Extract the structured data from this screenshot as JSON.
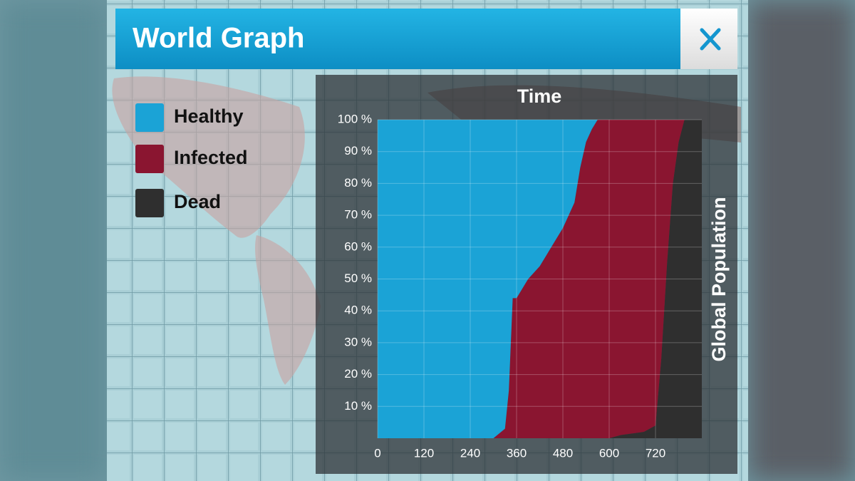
{
  "header": {
    "title": "World Graph"
  },
  "chart_data": {
    "type": "area",
    "stacked": true,
    "title": "Time",
    "ylabel": "Global Population",
    "x": [
      0,
      300,
      330,
      340,
      350,
      360,
      390,
      420,
      450,
      480,
      510,
      525,
      540,
      555,
      570,
      600,
      630,
      660,
      690,
      720,
      735,
      750,
      765,
      780,
      795,
      840
    ],
    "series": [
      {
        "name": "Healthy",
        "color": "#1ba3d6",
        "values": [
          100,
          100,
          97,
          85,
          56,
          56,
          50,
          46,
          40,
          34,
          26,
          15,
          7,
          3,
          0,
          0,
          0,
          0,
          0,
          0,
          0,
          0,
          0,
          0,
          0,
          0
        ]
      },
      {
        "name": "Infected",
        "color": "#8a1530",
        "values": [
          0,
          0,
          3,
          15,
          44,
          44,
          50,
          54,
          60,
          66,
          74,
          85,
          93,
          97,
          100,
          100,
          99,
          98.5,
          98,
          96,
          75,
          45,
          20,
          7,
          0,
          0
        ]
      },
      {
        "name": "Dead",
        "color": "#2f2f2f",
        "values": [
          0,
          0,
          0,
          0,
          0,
          0,
          0,
          0,
          0,
          0,
          0,
          0,
          0,
          0,
          0,
          0,
          1,
          1.5,
          2,
          4,
          25,
          55,
          80,
          93,
          100,
          100
        ]
      }
    ],
    "xlim": [
      0,
      840
    ],
    "xticks": [
      0,
      120,
      240,
      360,
      480,
      600,
      720
    ],
    "ylim": [
      0,
      100
    ],
    "yticks": [
      {
        "value": 10,
        "label": "10 %"
      },
      {
        "value": 20,
        "label": "20 %"
      },
      {
        "value": 30,
        "label": "30 %"
      },
      {
        "value": 40,
        "label": "40 %"
      },
      {
        "value": 50,
        "label": "50 %"
      },
      {
        "value": 60,
        "label": "60 %"
      },
      {
        "value": 70,
        "label": "70 %"
      },
      {
        "value": 80,
        "label": "80 %"
      },
      {
        "value": 90,
        "label": "90 %"
      },
      {
        "value": 100,
        "label": "100 %"
      }
    ],
    "grid": true
  }
}
